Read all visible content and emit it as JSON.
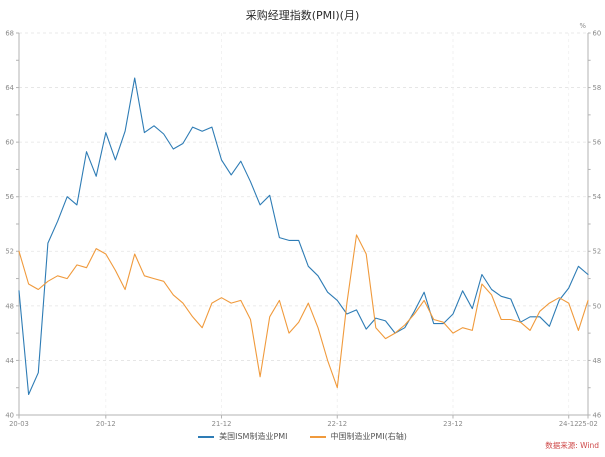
{
  "title": "采购经理指数(PMI)(月)",
  "source": "数据来源: Wind",
  "chart_data": {
    "type": "line",
    "title": "采购经理指数(PMI)(月)",
    "legend_position": "bottom-center",
    "grid": {
      "horizontal": "dashed",
      "vertical": "dashed-faint"
    },
    "left_axis": {
      "min": 40,
      "max": 68,
      "tick_step": 4,
      "minor_step": 2
    },
    "right_axis": {
      "min": 46,
      "max": 60,
      "tick_step": 2,
      "minor_step": 1,
      "unit": "%"
    },
    "x_ticks": [
      {
        "label": "20-03",
        "index": 0
      },
      {
        "label": "20-12",
        "index": 9
      },
      {
        "label": "21-12",
        "index": 21
      },
      {
        "label": "22-12",
        "index": 33
      },
      {
        "label": "23-12",
        "index": 45
      },
      {
        "label": "24-12",
        "index": 57
      },
      {
        "label": "25-02",
        "index": 59
      }
    ],
    "months": [
      "2020-03",
      "2020-04",
      "2020-05",
      "2020-06",
      "2020-07",
      "2020-08",
      "2020-09",
      "2020-10",
      "2020-11",
      "2020-12",
      "2021-01",
      "2021-02",
      "2021-03",
      "2021-04",
      "2021-05",
      "2021-06",
      "2021-07",
      "2021-08",
      "2021-09",
      "2021-10",
      "2021-11",
      "2021-12",
      "2022-01",
      "2022-02",
      "2022-03",
      "2022-04",
      "2022-05",
      "2022-06",
      "2022-07",
      "2022-08",
      "2022-09",
      "2022-10",
      "2022-11",
      "2022-12",
      "2023-01",
      "2023-02",
      "2023-03",
      "2023-04",
      "2023-05",
      "2023-06",
      "2023-07",
      "2023-08",
      "2023-09",
      "2023-10",
      "2023-11",
      "2023-12",
      "2024-01",
      "2024-02",
      "2024-03",
      "2024-04",
      "2024-05",
      "2024-06",
      "2024-07",
      "2024-08",
      "2024-09",
      "2024-10",
      "2024-11",
      "2024-12",
      "2025-01",
      "2025-02"
    ],
    "series": [
      {
        "name": "美国ISM制造业PMI",
        "axis": "left",
        "color": "#2e7cb5",
        "values": [
          49.1,
          41.5,
          43.1,
          52.6,
          54.2,
          56.0,
          55.4,
          59.3,
          57.5,
          60.7,
          58.7,
          60.8,
          64.7,
          60.7,
          61.2,
          60.6,
          59.5,
          59.9,
          61.1,
          60.8,
          61.1,
          58.7,
          57.6,
          58.6,
          57.1,
          55.4,
          56.1,
          53.0,
          52.8,
          52.8,
          50.9,
          50.2,
          49.0,
          48.4,
          47.4,
          47.7,
          46.3,
          47.1,
          46.9,
          46.0,
          46.4,
          47.6,
          49.0,
          46.7,
          46.7,
          47.4,
          49.1,
          47.8,
          50.3,
          49.2,
          48.7,
          48.5,
          46.8,
          47.2,
          47.2,
          46.5,
          48.4,
          49.3,
          50.9,
          50.3
        ]
      },
      {
        "name": "中国制造业PMI(右轴)",
        "axis": "right",
        "color": "#f09a3c",
        "values": [
          52.0,
          50.8,
          50.6,
          50.9,
          51.1,
          51.0,
          51.5,
          51.4,
          52.1,
          51.9,
          51.3,
          50.6,
          51.9,
          51.1,
          51.0,
          50.9,
          50.4,
          50.1,
          49.6,
          49.2,
          50.1,
          50.3,
          50.1,
          50.2,
          49.5,
          47.4,
          49.6,
          50.2,
          49.0,
          49.4,
          50.1,
          49.2,
          48.0,
          47.0,
          50.1,
          52.6,
          51.9,
          49.2,
          48.8,
          49.0,
          49.3,
          49.7,
          50.2,
          49.5,
          49.4,
          49.0,
          49.2,
          49.1,
          50.8,
          50.4,
          49.5,
          49.5,
          49.4,
          49.1,
          49.8,
          50.1,
          50.3,
          50.1,
          49.1,
          50.2
        ]
      }
    ]
  }
}
